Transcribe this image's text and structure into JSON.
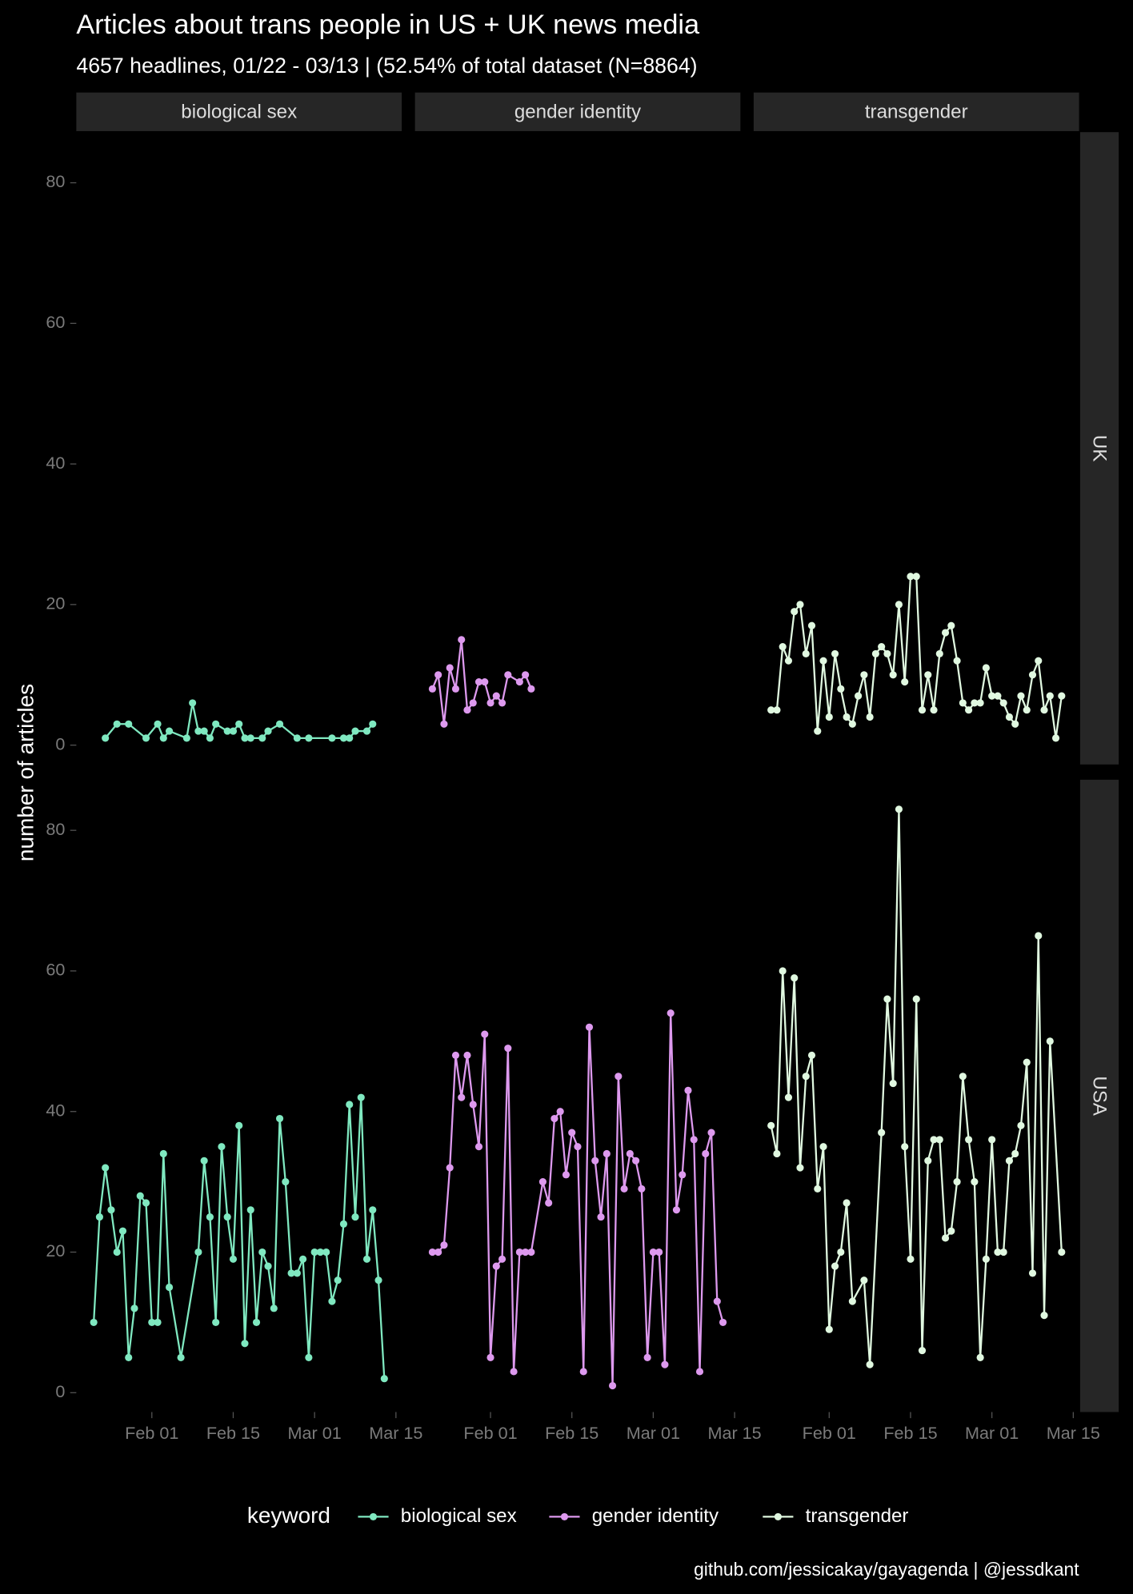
{
  "chart_data": {
    "type": "line",
    "title": "Articles about trans people in US + UK news media",
    "subtitle": "4657 headlines, 01/22 - 03/13 |  (52.54% of total dataset (N=8864)",
    "caption": "github.com/jessicakay/gayagenda | @jessdkant",
    "ylabel": "number of articles",
    "legend_title": "keyword",
    "legend": "bottom",
    "rows": [
      "UK",
      "USA"
    ],
    "xlim": [
      "01-19",
      "03-16"
    ],
    "xticks": [
      {
        "value": "02-01",
        "label": "Feb 01"
      },
      {
        "value": "02-15",
        "label": "Feb 15"
      },
      {
        "value": "03-01",
        "label": "Mar 01"
      },
      {
        "value": "03-15",
        "label": "Mar 15"
      }
    ],
    "ylim": [
      -2.75,
      87.2
    ],
    "yticks": [
      0,
      20,
      40,
      60,
      80
    ],
    "series": [
      {
        "name": "biological sex",
        "color": "#7fe8c0",
        "panels": [
          {
            "x": [
              "01-24",
              "01-26",
              "01-28",
              "01-31",
              "02-02",
              "02-03",
              "02-04",
              "02-07",
              "02-08",
              "02-09",
              "02-10",
              "02-11",
              "02-12",
              "02-14",
              "02-15",
              "02-16",
              "02-17",
              "02-18",
              "02-20",
              "02-21",
              "02-23",
              "02-26",
              "02-28",
              "03-04",
              "03-06",
              "03-07",
              "03-08",
              "03-10",
              "03-11"
            ],
            "values": [
              1,
              3,
              3,
              1,
              3,
              1,
              2,
              1,
              6,
              2,
              2,
              1,
              3,
              2,
              2,
              3,
              1,
              1,
              1,
              2,
              3,
              1,
              1,
              1,
              1,
              1,
              2,
              2,
              3
            ]
          },
          {
            "x": [
              "01-22",
              "01-23",
              "01-24",
              "01-25",
              "01-26",
              "01-27",
              "01-28",
              "01-29",
              "01-30",
              "01-31",
              "02-01",
              "02-02",
              "02-03",
              "02-04",
              "02-06",
              "02-09",
              "02-10",
              "02-11",
              "02-12",
              "02-13",
              "02-14",
              "02-15",
              "02-16",
              "02-17",
              "02-18",
              "02-19",
              "02-20",
              "02-21",
              "02-22",
              "02-23",
              "02-24",
              "02-25",
              "02-26",
              "02-27",
              "02-28",
              "03-01",
              "03-02",
              "03-03",
              "03-04",
              "03-05",
              "03-06",
              "03-07",
              "03-08",
              "03-09",
              "03-10",
              "03-11",
              "03-12",
              "03-13"
            ],
            "values": [
              10,
              25,
              32,
              26,
              20,
              23,
              5,
              12,
              28,
              27,
              10,
              10,
              34,
              15,
              5,
              20,
              33,
              25,
              10,
              35,
              25,
              19,
              38,
              7,
              26,
              10,
              20,
              18,
              12,
              39,
              30,
              17,
              17,
              19,
              5,
              20,
              20,
              20,
              13,
              16,
              24,
              41,
              25,
              42,
              19,
              26,
              16,
              2
            ]
          }
        ]
      },
      {
        "name": "gender identity",
        "color": "#dd99ee",
        "panels": [
          {
            "x": [
              "01-22",
              "01-23",
              "01-24",
              "01-25",
              "01-26",
              "01-27",
              "01-28",
              "01-29",
              "01-30",
              "01-31",
              "02-01",
              "02-02",
              "02-03",
              "02-04",
              "02-06",
              "02-07",
              "02-08"
            ],
            "values": [
              8,
              10,
              3,
              11,
              8,
              15,
              5,
              6,
              9,
              9,
              6,
              7,
              6,
              10,
              9,
              10,
              8
            ]
          },
          {
            "x": [
              "01-22",
              "01-23",
              "01-24",
              "01-25",
              "01-26",
              "01-27",
              "01-28",
              "01-29",
              "01-30",
              "01-31",
              "02-01",
              "02-02",
              "02-03",
              "02-04",
              "02-05",
              "02-06",
              "02-07",
              "02-08",
              "02-10",
              "02-11",
              "02-12",
              "02-13",
              "02-14",
              "02-15",
              "02-16",
              "02-17",
              "02-18",
              "02-19",
              "02-20",
              "02-21",
              "02-22",
              "02-23",
              "02-24",
              "02-25",
              "02-26",
              "02-27",
              "02-28",
              "03-01",
              "03-02",
              "03-03",
              "03-04",
              "03-05",
              "03-06",
              "03-07",
              "03-08",
              "03-09",
              "03-10",
              "03-11",
              "03-12",
              "03-13"
            ],
            "values": [
              20,
              20,
              21,
              32,
              48,
              42,
              48,
              41,
              35,
              51,
              5,
              18,
              19,
              49,
              3,
              20,
              20,
              20,
              30,
              27,
              39,
              40,
              31,
              37,
              35,
              3,
              52,
              33,
              25,
              34,
              1,
              45,
              29,
              34,
              33,
              29,
              5,
              20,
              20,
              4,
              54,
              26,
              31,
              43,
              36,
              3,
              34,
              37,
              13,
              10
            ]
          }
        ]
      },
      {
        "name": "transgender",
        "color": "#e0f8e0",
        "panels": [
          {
            "x": [
              "01-22",
              "01-23",
              "01-24",
              "01-25",
              "01-26",
              "01-27",
              "01-28",
              "01-29",
              "01-30",
              "01-31",
              "02-01",
              "02-02",
              "02-03",
              "02-04",
              "02-05",
              "02-06",
              "02-07",
              "02-08",
              "02-09",
              "02-10",
              "02-11",
              "02-12",
              "02-13",
              "02-14",
              "02-15",
              "02-16",
              "02-17",
              "02-18",
              "02-19",
              "02-20",
              "02-21",
              "02-22",
              "02-23",
              "02-24",
              "02-25",
              "02-26",
              "02-27",
              "02-28",
              "03-01",
              "03-02",
              "03-03",
              "03-04",
              "03-05",
              "03-06",
              "03-07",
              "03-08",
              "03-09",
              "03-10",
              "03-11",
              "03-12",
              "03-13"
            ],
            "values": [
              5,
              5,
              14,
              12,
              19,
              20,
              13,
              17,
              2,
              12,
              4,
              13,
              8,
              4,
              3,
              7,
              10,
              4,
              13,
              14,
              13,
              10,
              20,
              9,
              24,
              24,
              5,
              10,
              5,
              13,
              16,
              17,
              12,
              6,
              5,
              6,
              6,
              11,
              7,
              7,
              6,
              4,
              3,
              7,
              5,
              10,
              12,
              5,
              7,
              1,
              7
            ]
          },
          {
            "x": [
              "01-22",
              "01-23",
              "01-24",
              "01-25",
              "01-26",
              "01-27",
              "01-28",
              "01-29",
              "01-30",
              "01-31",
              "02-01",
              "02-02",
              "02-03",
              "02-04",
              "02-05",
              "02-07",
              "02-08",
              "02-10",
              "02-11",
              "02-12",
              "02-13",
              "02-14",
              "02-15",
              "02-16",
              "02-17",
              "02-18",
              "02-19",
              "02-20",
              "02-21",
              "02-22",
              "02-23",
              "02-24",
              "02-25",
              "02-26",
              "02-27",
              "02-28",
              "03-01",
              "03-02",
              "03-03",
              "03-04",
              "03-05",
              "03-06",
              "03-07",
              "03-08",
              "03-09",
              "03-10",
              "03-11",
              "03-13"
            ],
            "values": [
              38,
              34,
              60,
              42,
              59,
              32,
              45,
              48,
              29,
              35,
              9,
              18,
              20,
              27,
              13,
              16,
              4,
              37,
              56,
              44,
              83,
              35,
              19,
              56,
              6,
              33,
              36,
              36,
              22,
              23,
              30,
              45,
              36,
              30,
              5,
              19,
              36,
              20,
              20,
              33,
              34,
              38,
              47,
              17,
              65,
              11,
              50,
              20
            ]
          }
        ]
      }
    ]
  }
}
